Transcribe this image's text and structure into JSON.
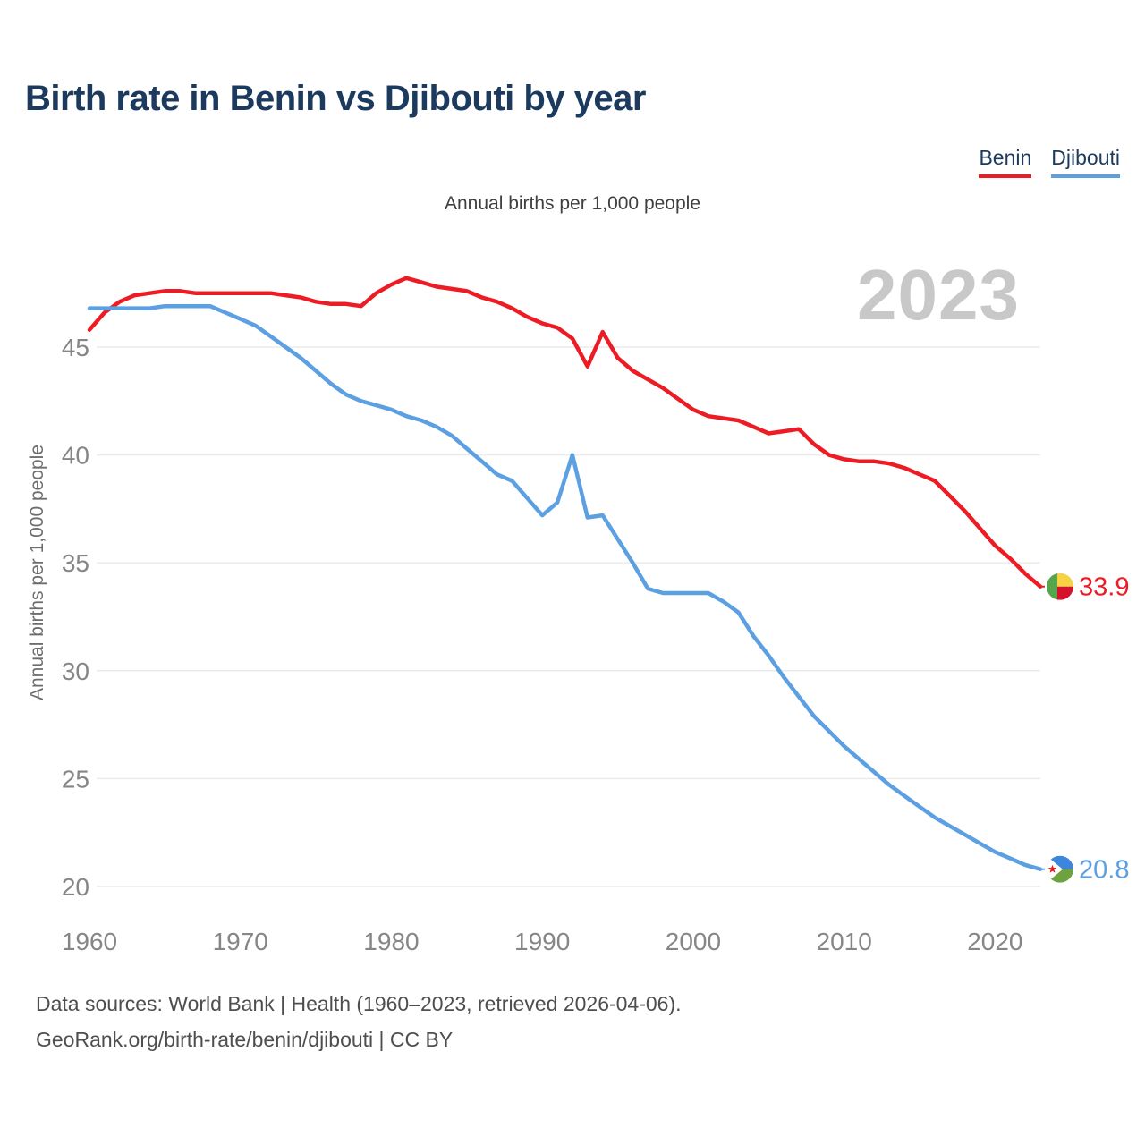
{
  "header": {
    "title": "Birth rate in Benin vs Djibouti by year"
  },
  "legend": {
    "items": [
      {
        "id": "benin",
        "label": "Benin",
        "color": "#ed1c24"
      },
      {
        "id": "djibouti",
        "label": "Djibouti",
        "color": "#5da0e2"
      }
    ]
  },
  "subtitle": "Annual births per 1,000 people",
  "watermark": "2023",
  "y_axis_title": "Annual births per 1,000 people",
  "footer": {
    "line1": "Data sources: World Bank | Health (1960–2023, retrieved 2026-04-06).",
    "line2": "GeoRank.org/birth-rate/benin/djibouti | CC BY"
  },
  "chart_data": {
    "type": "line",
    "title": "Birth rate in Benin vs Djibouti by year",
    "subtitle": "Annual births per 1,000 people",
    "ylabel": "Annual births per 1,000 people",
    "xlim": [
      1960,
      2023
    ],
    "ylim": [
      18.5,
      48.5
    ],
    "grid": true,
    "legend_position": "top-right",
    "x_ticks": [
      1960,
      1970,
      1980,
      1990,
      2000,
      2010,
      2020
    ],
    "y_ticks": [
      20,
      25,
      30,
      35,
      40,
      45
    ],
    "x": [
      1960,
      1961,
      1962,
      1963,
      1964,
      1965,
      1966,
      1967,
      1968,
      1969,
      1970,
      1971,
      1972,
      1973,
      1974,
      1975,
      1976,
      1977,
      1978,
      1979,
      1980,
      1981,
      1982,
      1983,
      1984,
      1985,
      1986,
      1987,
      1988,
      1989,
      1990,
      1991,
      1992,
      1993,
      1994,
      1995,
      1996,
      1997,
      1998,
      1999,
      2000,
      2001,
      2002,
      2003,
      2004,
      2005,
      2006,
      2007,
      2008,
      2009,
      2010,
      2011,
      2012,
      2013,
      2014,
      2015,
      2016,
      2017,
      2018,
      2019,
      2020,
      2021,
      2022,
      2023
    ],
    "series": [
      {
        "name": "Benin",
        "color": "#ed1c24",
        "end_label": "33.9",
        "end_value": 33.9,
        "flag": "benin",
        "values": [
          45.8,
          46.6,
          47.1,
          47.4,
          47.5,
          47.6,
          47.6,
          47.5,
          47.5,
          47.5,
          47.5,
          47.5,
          47.5,
          47.4,
          47.3,
          47.1,
          47.0,
          47.0,
          46.9,
          47.5,
          47.9,
          48.2,
          48.0,
          47.8,
          47.7,
          47.6,
          47.3,
          47.1,
          46.8,
          46.4,
          46.1,
          45.9,
          45.4,
          44.1,
          45.7,
          44.5,
          43.9,
          43.5,
          43.1,
          42.6,
          42.1,
          41.8,
          41.7,
          41.6,
          41.3,
          41.0,
          41.1,
          41.2,
          40.5,
          40.0,
          39.8,
          39.7,
          39.7,
          39.6,
          39.4,
          39.1,
          38.8,
          38.1,
          37.4,
          36.6,
          35.8,
          35.2,
          34.5,
          33.9
        ]
      },
      {
        "name": "Djibouti",
        "color": "#5da0e2",
        "end_label": "20.8",
        "end_value": 20.8,
        "flag": "djibouti",
        "values": [
          46.8,
          46.8,
          46.8,
          46.8,
          46.8,
          46.9,
          46.9,
          46.9,
          46.9,
          46.6,
          46.3,
          46.0,
          45.5,
          45.0,
          44.5,
          43.9,
          43.3,
          42.8,
          42.5,
          42.3,
          42.1,
          41.8,
          41.6,
          41.3,
          40.9,
          40.3,
          39.7,
          39.1,
          38.8,
          38.0,
          37.2,
          37.8,
          40.0,
          37.1,
          37.2,
          36.1,
          35.0,
          33.8,
          33.6,
          33.6,
          33.6,
          33.6,
          33.2,
          32.7,
          31.6,
          30.7,
          29.7,
          28.8,
          27.9,
          27.2,
          26.5,
          25.9,
          25.3,
          24.7,
          24.2,
          23.7,
          23.2,
          22.8,
          22.4,
          22.0,
          21.6,
          21.3,
          21.0,
          20.8
        ]
      }
    ],
    "flag_colors": {
      "benin": {
        "green": "#56a44c",
        "yellow": "#f7d244",
        "red": "#d5122d"
      },
      "djibouti": {
        "blue": "#3c86de",
        "green": "#6da33f",
        "star_red": "#e02020",
        "white": "#ffffff"
      }
    }
  }
}
